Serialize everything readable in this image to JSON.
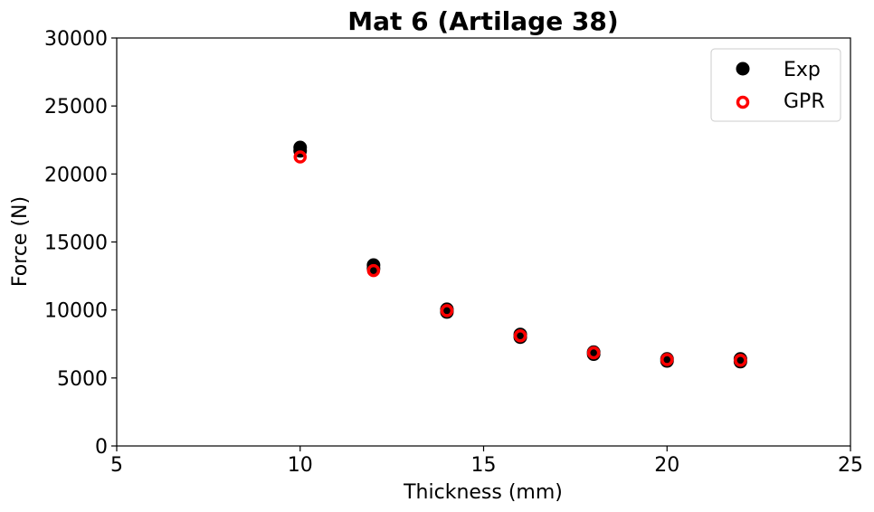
{
  "chart_data": {
    "type": "scatter",
    "title": "Mat 6 (Artilage 38)",
    "xlabel": "Thickness (mm)",
    "ylabel": "Force (N)",
    "xlim": [
      5,
      25
    ],
    "ylim": [
      0,
      30000
    ],
    "xticks": [
      5,
      10,
      15,
      20,
      25
    ],
    "yticks": [
      0,
      5000,
      10000,
      15000,
      20000,
      25000,
      30000
    ],
    "grid": false,
    "legend_position": "top-right",
    "series": [
      {
        "name": "Exp",
        "marker": "filled-circle",
        "color": "#000000",
        "points": [
          {
            "x": 10,
            "y": 21950
          },
          {
            "x": 10,
            "y": 21700
          },
          {
            "x": 12,
            "y": 13300
          },
          {
            "x": 12,
            "y": 13050
          },
          {
            "x": 14,
            "y": 10050
          },
          {
            "x": 14,
            "y": 9850
          },
          {
            "x": 16,
            "y": 8200
          },
          {
            "x": 16,
            "y": 8000
          },
          {
            "x": 18,
            "y": 6900
          },
          {
            "x": 18,
            "y": 6750
          },
          {
            "x": 20,
            "y": 6400
          },
          {
            "x": 20,
            "y": 6250
          },
          {
            "x": 22,
            "y": 6400
          },
          {
            "x": 22,
            "y": 6200
          }
        ]
      },
      {
        "name": "GPR",
        "marker": "open-circle",
        "color": "#ff0000",
        "points": [
          {
            "x": 10,
            "y": 21250
          },
          {
            "x": 12,
            "y": 12900
          },
          {
            "x": 14,
            "y": 9950
          },
          {
            "x": 16,
            "y": 8100
          },
          {
            "x": 18,
            "y": 6850
          },
          {
            "x": 20,
            "y": 6350
          },
          {
            "x": 22,
            "y": 6300
          }
        ]
      }
    ]
  }
}
